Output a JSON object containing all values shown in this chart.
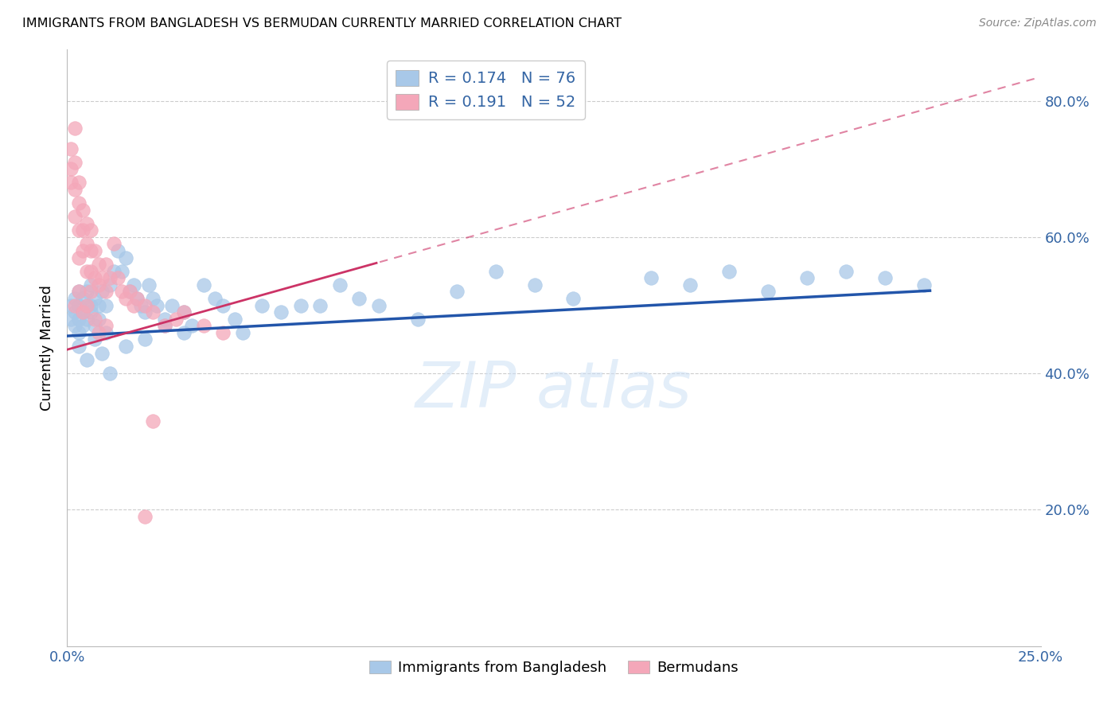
{
  "title": "IMMIGRANTS FROM BANGLADESH VS BERMUDAN CURRENTLY MARRIED CORRELATION CHART",
  "source": "Source: ZipAtlas.com",
  "xlabel_blue": "Immigrants from Bangladesh",
  "xlabel_pink": "Bermudans",
  "ylabel": "Currently Married",
  "xlim": [
    0.0,
    0.25
  ],
  "ylim": [
    0.0,
    0.875
  ],
  "yticks": [
    0.2,
    0.4,
    0.6,
    0.8
  ],
  "ytick_labels": [
    "20.0%",
    "40.0%",
    "60.0%",
    "80.0%"
  ],
  "xtick_positions": [
    0.0,
    0.05,
    0.1,
    0.15,
    0.2,
    0.25
  ],
  "xtick_labels": [
    "0.0%",
    "",
    "",
    "",
    "",
    "25.0%"
  ],
  "legend_blue_R": "0.174",
  "legend_blue_N": "76",
  "legend_pink_R": "0.191",
  "legend_pink_N": "52",
  "blue_color": "#a8c8e8",
  "pink_color": "#f4a7b9",
  "trend_blue_color": "#2255aa",
  "trend_pink_color": "#cc3366",
  "watermark": "ZIP atlas",
  "blue_intercept": 0.455,
  "blue_slope": 0.3,
  "pink_intercept": 0.435,
  "pink_slope": 1.6,
  "blue_x": [
    0.001,
    0.001,
    0.002,
    0.002,
    0.002,
    0.003,
    0.003,
    0.003,
    0.003,
    0.004,
    0.004,
    0.004,
    0.005,
    0.005,
    0.005,
    0.006,
    0.006,
    0.006,
    0.007,
    0.007,
    0.008,
    0.008,
    0.009,
    0.01,
    0.01,
    0.011,
    0.012,
    0.013,
    0.014,
    0.015,
    0.016,
    0.017,
    0.018,
    0.019,
    0.02,
    0.021,
    0.022,
    0.023,
    0.025,
    0.027,
    0.03,
    0.032,
    0.035,
    0.038,
    0.04,
    0.043,
    0.045,
    0.05,
    0.055,
    0.06,
    0.065,
    0.07,
    0.075,
    0.08,
    0.09,
    0.1,
    0.11,
    0.12,
    0.13,
    0.15,
    0.16,
    0.17,
    0.18,
    0.19,
    0.2,
    0.21,
    0.22,
    0.003,
    0.005,
    0.007,
    0.009,
    0.011,
    0.015,
    0.02,
    0.025,
    0.03
  ],
  "blue_y": [
    0.48,
    0.5,
    0.49,
    0.51,
    0.47,
    0.5,
    0.48,
    0.52,
    0.46,
    0.49,
    0.51,
    0.47,
    0.5,
    0.48,
    0.52,
    0.5,
    0.49,
    0.53,
    0.47,
    0.51,
    0.5,
    0.48,
    0.52,
    0.5,
    0.46,
    0.53,
    0.55,
    0.58,
    0.55,
    0.57,
    0.52,
    0.53,
    0.51,
    0.5,
    0.49,
    0.53,
    0.51,
    0.5,
    0.48,
    0.5,
    0.49,
    0.47,
    0.53,
    0.51,
    0.5,
    0.48,
    0.46,
    0.5,
    0.49,
    0.5,
    0.5,
    0.53,
    0.51,
    0.5,
    0.48,
    0.52,
    0.55,
    0.53,
    0.51,
    0.54,
    0.53,
    0.55,
    0.52,
    0.54,
    0.55,
    0.54,
    0.53,
    0.44,
    0.42,
    0.45,
    0.43,
    0.4,
    0.44,
    0.45,
    0.47,
    0.46
  ],
  "pink_x": [
    0.001,
    0.001,
    0.001,
    0.002,
    0.002,
    0.002,
    0.002,
    0.003,
    0.003,
    0.003,
    0.003,
    0.004,
    0.004,
    0.004,
    0.005,
    0.005,
    0.005,
    0.006,
    0.006,
    0.006,
    0.007,
    0.007,
    0.008,
    0.008,
    0.009,
    0.01,
    0.01,
    0.011,
    0.012,
    0.013,
    0.014,
    0.015,
    0.016,
    0.017,
    0.018,
    0.02,
    0.022,
    0.025,
    0.028,
    0.03,
    0.035,
    0.04,
    0.002,
    0.003,
    0.004,
    0.005,
    0.006,
    0.007,
    0.008,
    0.01,
    0.02,
    0.022
  ],
  "pink_y": [
    0.73,
    0.7,
    0.68,
    0.71,
    0.67,
    0.63,
    0.76,
    0.68,
    0.65,
    0.61,
    0.57,
    0.64,
    0.61,
    0.58,
    0.62,
    0.59,
    0.55,
    0.61,
    0.58,
    0.55,
    0.58,
    0.54,
    0.56,
    0.53,
    0.54,
    0.56,
    0.52,
    0.54,
    0.59,
    0.54,
    0.52,
    0.51,
    0.52,
    0.5,
    0.51,
    0.5,
    0.49,
    0.47,
    0.48,
    0.49,
    0.47,
    0.46,
    0.5,
    0.52,
    0.49,
    0.5,
    0.52,
    0.48,
    0.46,
    0.47,
    0.19,
    0.33
  ]
}
